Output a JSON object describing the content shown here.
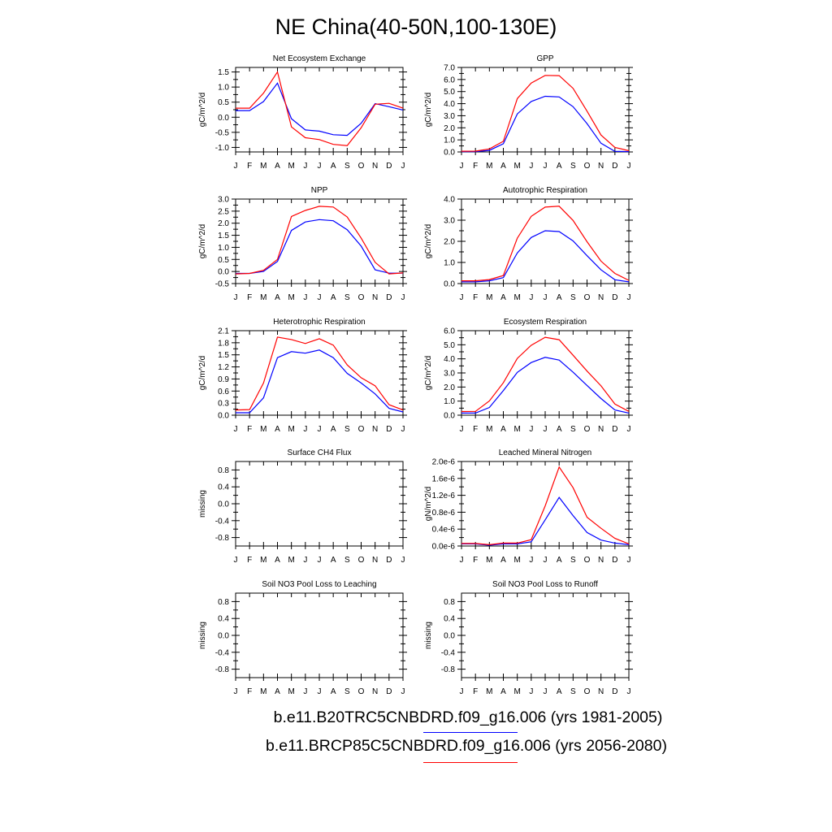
{
  "figure_title": "NE China(40-50N,100-130E)",
  "colors": {
    "run1": "#0000ff",
    "run2": "#ff0000",
    "axis": "#000000"
  },
  "legend": [
    {
      "label": "b.e11.B20TRC5CNBDRD.f09_g16.006 (yrs 1981-2005)",
      "color": "#0000ff"
    },
    {
      "label": "b.e11.BRCP85C5CNBDRD.f09_g16.006 (yrs 2056-2080)",
      "color": "#ff0000"
    }
  ],
  "chart_data": [
    {
      "type": "line",
      "title": "Net Ecosystem Exchange",
      "ylabel": "gC/m^2/d",
      "categories": [
        "J",
        "F",
        "M",
        "A",
        "M",
        "J",
        "J",
        "A",
        "S",
        "O",
        "N",
        "D",
        "J"
      ],
      "ylim": [
        -1.15,
        1.65
      ],
      "yticks": [
        -1.0,
        -0.5,
        0.0,
        0.5,
        1.0,
        1.5
      ],
      "ytick_labels": [
        "-1.0",
        "-0.5",
        "0.0",
        "0.5",
        "1.0",
        "1.5"
      ],
      "series": [
        {
          "color": "#0000ff",
          "values": [
            0.22,
            0.22,
            0.52,
            1.13,
            -0.05,
            -0.42,
            -0.46,
            -0.58,
            -0.6,
            -0.2,
            0.45,
            0.35,
            0.24
          ]
        },
        {
          "color": "#ff0000",
          "values": [
            0.3,
            0.3,
            0.8,
            1.5,
            -0.32,
            -0.68,
            -0.74,
            -0.9,
            -0.94,
            -0.35,
            0.43,
            0.46,
            0.3
          ]
        }
      ]
    },
    {
      "type": "line",
      "title": "GPP",
      "ylabel": "gC/m^2/d",
      "categories": [
        "J",
        "F",
        "M",
        "A",
        "M",
        "J",
        "J",
        "A",
        "S",
        "O",
        "N",
        "D",
        "J"
      ],
      "ylim": [
        0,
        7.0
      ],
      "yticks": [
        0,
        1,
        2,
        3,
        4,
        5,
        6,
        7
      ],
      "ytick_labels": [
        "0.0",
        "1.0",
        "2.0",
        "3.0",
        "4.0",
        "5.0",
        "6.0",
        "7.0"
      ],
      "series": [
        {
          "color": "#0000ff",
          "values": [
            0.03,
            0.03,
            0.13,
            0.68,
            3.15,
            4.18,
            4.61,
            4.56,
            3.75,
            2.35,
            0.72,
            0.05,
            0.03
          ]
        },
        {
          "color": "#ff0000",
          "values": [
            0.06,
            0.07,
            0.25,
            0.88,
            4.42,
            5.71,
            6.34,
            6.32,
            5.27,
            3.38,
            1.4,
            0.38,
            0.1
          ]
        }
      ]
    },
    {
      "type": "line",
      "title": "NPP",
      "ylabel": "gC/m^2/d",
      "categories": [
        "J",
        "F",
        "M",
        "A",
        "M",
        "J",
        "J",
        "A",
        "S",
        "O",
        "N",
        "D",
        "J"
      ],
      "ylim": [
        -0.5,
        3.0
      ],
      "yticks": [
        -0.5,
        0,
        0.5,
        1,
        1.5,
        2,
        2.5,
        3
      ],
      "ytick_labels": [
        "-0.5",
        "0.0",
        "0.5",
        "1.0",
        "1.5",
        "2.0",
        "2.5",
        "3.0"
      ],
      "series": [
        {
          "color": "#0000ff",
          "values": [
            -0.08,
            -0.08,
            0.0,
            0.42,
            1.7,
            2.05,
            2.15,
            2.1,
            1.73,
            1.05,
            0.07,
            -0.07,
            -0.07
          ]
        },
        {
          "color": "#ff0000",
          "values": [
            -0.1,
            -0.08,
            0.05,
            0.5,
            2.28,
            2.53,
            2.7,
            2.67,
            2.26,
            1.38,
            0.38,
            -0.1,
            -0.06
          ]
        }
      ]
    },
    {
      "type": "line",
      "title": "Autotrophic Respiration",
      "ylabel": "gC/m^2/d",
      "categories": [
        "J",
        "F",
        "M",
        "A",
        "M",
        "J",
        "J",
        "A",
        "S",
        "O",
        "N",
        "D",
        "J"
      ],
      "ylim": [
        0,
        4.0
      ],
      "yticks": [
        0,
        1,
        2,
        3,
        4
      ],
      "ytick_labels": [
        "0.0",
        "1.0",
        "2.0",
        "3.0",
        "4.0"
      ],
      "series": [
        {
          "color": "#0000ff",
          "values": [
            0.08,
            0.08,
            0.13,
            0.28,
            1.45,
            2.18,
            2.5,
            2.46,
            2.02,
            1.32,
            0.65,
            0.18,
            0.08
          ]
        },
        {
          "color": "#ff0000",
          "values": [
            0.13,
            0.13,
            0.19,
            0.38,
            2.15,
            3.18,
            3.62,
            3.66,
            2.99,
            1.98,
            1.06,
            0.48,
            0.15
          ]
        }
      ]
    },
    {
      "type": "line",
      "title": "Heterotrophic Respiration",
      "ylabel": "gC/m^2/d",
      "categories": [
        "J",
        "F",
        "M",
        "A",
        "M",
        "J",
        "J",
        "A",
        "S",
        "O",
        "N",
        "D",
        "J"
      ],
      "ylim": [
        0,
        2.1
      ],
      "yticks": [
        0,
        0.3,
        0.6,
        0.9,
        1.2,
        1.5,
        1.8,
        2.1
      ],
      "ytick_labels": [
        "0.0",
        "0.3",
        "0.6",
        "0.9",
        "1.2",
        "1.5",
        "1.8",
        "2.1"
      ],
      "series": [
        {
          "color": "#0000ff",
          "values": [
            0.06,
            0.06,
            0.43,
            1.43,
            1.58,
            1.54,
            1.62,
            1.43,
            1.04,
            0.8,
            0.53,
            0.17,
            0.08
          ]
        },
        {
          "color": "#ff0000",
          "values": [
            0.13,
            0.14,
            0.8,
            1.94,
            1.88,
            1.78,
            1.9,
            1.74,
            1.25,
            0.93,
            0.73,
            0.26,
            0.13
          ]
        }
      ]
    },
    {
      "type": "line",
      "title": "Ecosystem Respiration",
      "ylabel": "gC/m^2/d",
      "categories": [
        "J",
        "F",
        "M",
        "A",
        "M",
        "J",
        "J",
        "A",
        "S",
        "O",
        "N",
        "D",
        "J"
      ],
      "ylim": [
        0,
        6.0
      ],
      "yticks": [
        0,
        1,
        2,
        3,
        4,
        5,
        6
      ],
      "ytick_labels": [
        "0.0",
        "1.0",
        "2.0",
        "3.0",
        "4.0",
        "5.0",
        "6.0"
      ],
      "series": [
        {
          "color": "#0000ff",
          "values": [
            0.15,
            0.15,
            0.55,
            1.74,
            3.04,
            3.74,
            4.11,
            3.91,
            3.05,
            2.11,
            1.18,
            0.37,
            0.15
          ]
        },
        {
          "color": "#ff0000",
          "values": [
            0.26,
            0.27,
            1.01,
            2.3,
            4.03,
            4.96,
            5.53,
            5.36,
            4.26,
            3.13,
            2.08,
            0.79,
            0.27
          ]
        }
      ]
    },
    {
      "type": "line",
      "title": "Surface CH4 Flux",
      "ylabel": "missing",
      "categories": [
        "J",
        "F",
        "M",
        "A",
        "M",
        "J",
        "J",
        "A",
        "S",
        "O",
        "N",
        "D",
        "J"
      ],
      "ylim": [
        -1.0,
        1.0
      ],
      "yticks": [
        -0.8,
        -0.4,
        0.0,
        0.4,
        0.8
      ],
      "ytick_labels": [
        "-0.8",
        "-0.4",
        "0.0",
        "0.4",
        "0.8"
      ],
      "series": []
    },
    {
      "type": "line",
      "title": "Leached Mineral Nitrogen",
      "ylabel": "gN/m^2/d",
      "categories": [
        "J",
        "F",
        "M",
        "A",
        "M",
        "J",
        "J",
        "A",
        "S",
        "O",
        "N",
        "D",
        "J"
      ],
      "ylim": [
        0,
        2e-06
      ],
      "yticks": [
        0,
        4e-07,
        8e-07,
        1.2e-06,
        1.6e-06,
        2e-06
      ],
      "ytick_labels": [
        "0.0e-6",
        "0.4e-6",
        "0.8e-6",
        "1.2e-6",
        "1.6e-6",
        "2.0e-6"
      ],
      "series": [
        {
          "color": "#0000ff",
          "values": [
            5e-08,
            5e-08,
            2e-08,
            5e-08,
            5e-08,
            1e-07,
            6.2e-07,
            1.15e-06,
            7.2e-07,
            3.2e-07,
            1.4e-07,
            7e-08,
            3e-08
          ]
        },
        {
          "color": "#ff0000",
          "values": [
            6e-08,
            6e-08,
            3e-08,
            7e-08,
            7e-08,
            1.5e-07,
            9.5e-07,
            1.87e-06,
            1.38e-06,
            6.8e-07,
            4.2e-07,
            1.8e-07,
            5e-08
          ]
        }
      ]
    },
    {
      "type": "line",
      "title": "Soil NO3 Pool Loss to Leaching",
      "ylabel": "missing",
      "categories": [
        "J",
        "F",
        "M",
        "A",
        "M",
        "J",
        "J",
        "A",
        "S",
        "O",
        "N",
        "D",
        "J"
      ],
      "ylim": [
        -1.0,
        1.0
      ],
      "yticks": [
        -0.8,
        -0.4,
        0.0,
        0.4,
        0.8
      ],
      "ytick_labels": [
        "-0.8",
        "-0.4",
        "0.0",
        "0.4",
        "0.8"
      ],
      "series": []
    },
    {
      "type": "line",
      "title": "Soil NO3 Pool Loss to Runoff",
      "ylabel": "missing",
      "categories": [
        "J",
        "F",
        "M",
        "A",
        "M",
        "J",
        "J",
        "A",
        "S",
        "O",
        "N",
        "D",
        "J"
      ],
      "ylim": [
        -1.0,
        1.0
      ],
      "yticks": [
        -0.8,
        -0.4,
        0.0,
        0.4,
        0.8
      ],
      "ytick_labels": [
        "-0.8",
        "-0.4",
        "0.0",
        "0.4",
        "0.8"
      ],
      "series": []
    }
  ]
}
